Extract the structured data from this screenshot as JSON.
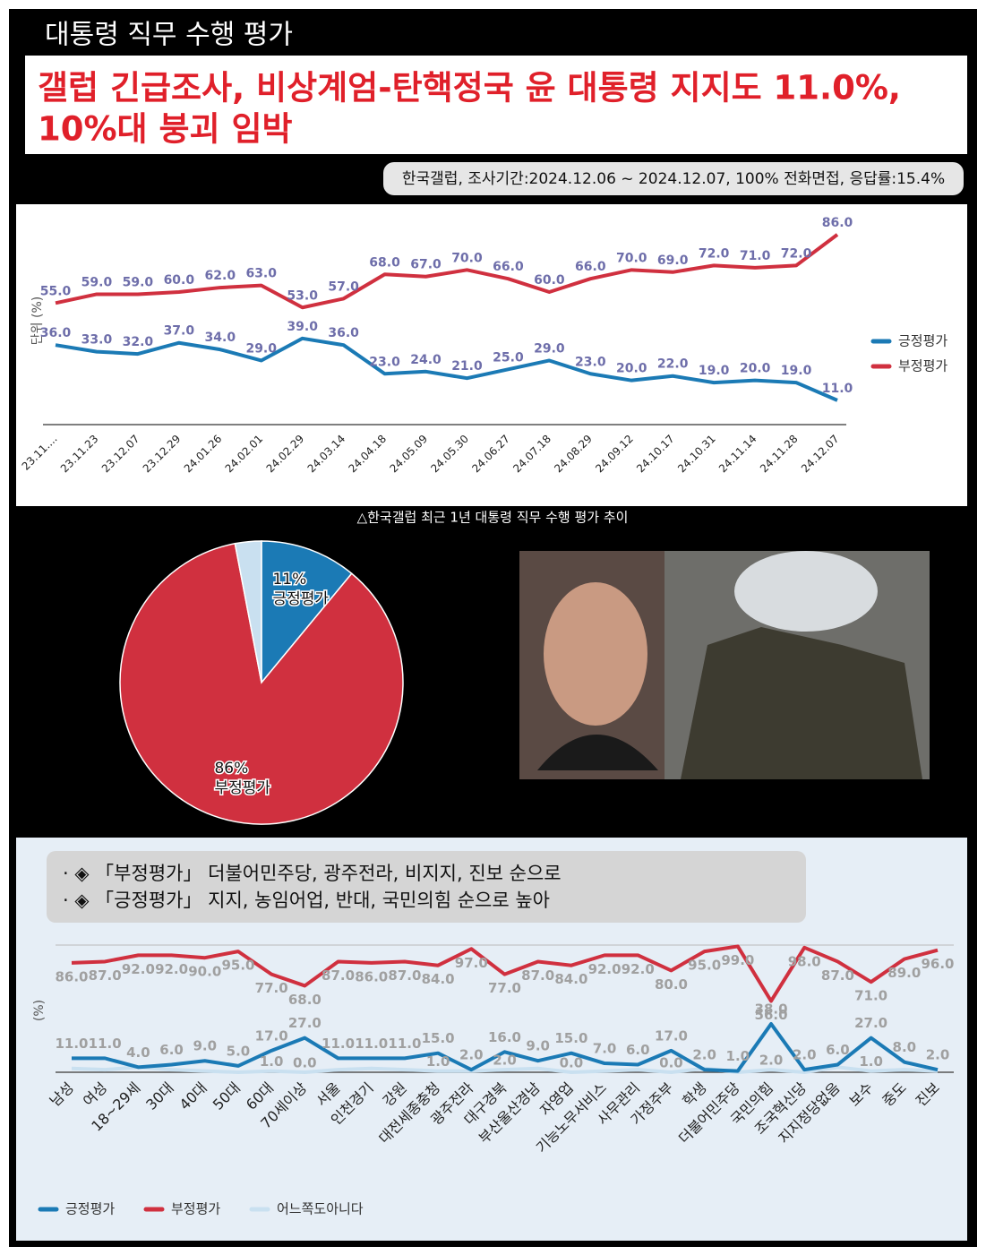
{
  "header": "대통령 직무 수행 평가",
  "title": [
    "갤럽 긴급조사, 비상계엄-탄핵정국 윤 대통령 지지도 11.0%,",
    "10%대 붕괴 임박"
  ],
  "source": "한국갤럽, 조사기간:2024.12.06 ~ 2024.12.07, 100% 전화면접, 응답률:15.4%",
  "caption": "△한국갤럽 최근 1년 대통령 직무 수행 평가 추이",
  "bullets": [
    "· ◈ 「부정평가」 더불어민주당, 광주전라, 비지지, 진보 순으로",
    "· ◈ 「긍정평가」 지지, 농임어업, 반대, 국민의힘 순으로 높아"
  ],
  "chart_data": [
    {
      "type": "line",
      "y_label": "단위 (%)",
      "categories": [
        "23.11....",
        "23.11.23",
        "23.12.07",
        "23.12.29",
        "24.01.26",
        "24.02.01",
        "24.02.29",
        "24.03.14",
        "24.04.18",
        "24.05.09",
        "24.05.30",
        "24.06.27",
        "24.07.18",
        "24.08.29",
        "24.09.12",
        "24.10.17",
        "24.10.31",
        "24.11.14",
        "24.11.28",
        "24.12.07"
      ],
      "series": [
        {
          "name": "긍정평가",
          "color": "#1b7ab5",
          "values": [
            36,
            33,
            32,
            37,
            34,
            29,
            39,
            36,
            23,
            24,
            21,
            25,
            29,
            23,
            20,
            22,
            19,
            20,
            19,
            11
          ],
          "value_labels": [
            "36.0",
            "33.0",
            "32.0",
            "37.0",
            "34.0",
            "29.0",
            "39.0",
            "36.0",
            "23.0",
            "24.0",
            "21.0",
            "25.0",
            "29.0",
            "23.0",
            "20.0",
            "22.0",
            "19.0",
            "20.0",
            "19.0",
            "11.0"
          ]
        },
        {
          "name": "부정평가",
          "color": "#d0303f",
          "values": [
            55,
            59,
            59,
            60,
            62,
            63,
            53,
            57,
            68,
            67,
            70,
            66,
            60,
            66,
            70,
            69,
            72,
            71,
            72,
            86
          ],
          "value_labels": [
            "55.0",
            "59.0",
            "59.0",
            "60.0",
            "62.0",
            "63.0",
            "53.0",
            "57.0",
            "68.0",
            "67.0",
            "70.0",
            "66.0",
            "60.0",
            "66.0",
            "70.0",
            "69.0",
            "72.0",
            "71.0",
            "72.0",
            "86.0"
          ]
        }
      ],
      "ylim": [
        0,
        90
      ],
      "legend": "right"
    },
    {
      "type": "pie",
      "categories": [
        "긍정평가",
        "부정평가",
        null
      ],
      "values": [
        11,
        86,
        3
      ],
      "value_labels": [
        "11%",
        "86%",
        null
      ],
      "colors": [
        "#1b7ab5",
        "#d0303f",
        "#c9e0f0"
      ]
    },
    {
      "type": "line",
      "y_label": "(%)",
      "categories": [
        "남성",
        "여성",
        "18~29세",
        "30대",
        "40대",
        "50대",
        "60대",
        "70세이상",
        "서울",
        "인천경기",
        "강원",
        "대전세종충청",
        "광주전라",
        "대구경북",
        "부산울산경남",
        "자영업",
        "기능노무서비스",
        "사무관리",
        "가정주부",
        "학생",
        "더불어민주당",
        "국민의힘",
        "조국혁신당",
        "지지정당없음",
        "보수",
        "중도",
        "진보"
      ],
      "series": [
        {
          "name": "긍정평가",
          "color": "#1b7ab5",
          "values": [
            11,
            11,
            4,
            6,
            9,
            5,
            17,
            27,
            11,
            11,
            11,
            15,
            2,
            16,
            9,
            15,
            7,
            6,
            17,
            2,
            1,
            38,
            2,
            6,
            27,
            8,
            2
          ],
          "value_labels": [
            "11.0",
            "11.0",
            "4.0",
            "6.0",
            "9.0",
            "5.0",
            "17.0",
            "27.0",
            "11.0",
            "11.0",
            "11.0",
            "15.0",
            "2.0",
            "16.0",
            "9.0",
            "15.0",
            "7.0",
            "6.0",
            "17.0",
            "2.0",
            "1.0",
            "38.0",
            "2.0",
            "6.0",
            "27.0",
            "8.0",
            "2.0"
          ]
        },
        {
          "name": "부정평가",
          "color": "#d0303f",
          "values": [
            86,
            87,
            92,
            92,
            90,
            95,
            77,
            68,
            87,
            86,
            87,
            84,
            97,
            77,
            87,
            84,
            92,
            92,
            80,
            95,
            99,
            56,
            98,
            87,
            71,
            89,
            96
          ],
          "value_labels": [
            "86.0",
            "87.0",
            "92.0",
            "92.0",
            "90.0",
            "95.0",
            "77.0",
            "68.0",
            "87.0",
            "86.0",
            "87.0",
            "84.0",
            "97.0",
            "77.0",
            "87.0",
            "84.0",
            "92.0",
            "92.0",
            "80.0",
            "95.0",
            "99.0",
            "56.0",
            "98.0",
            "87.0",
            "71.0",
            "89.0",
            "96.0"
          ]
        },
        {
          "name": "어느쪽도아니다",
          "color": "#c9e0f0",
          "values": [
            3,
            2,
            4,
            2,
            1,
            0,
            1,
            0,
            2,
            3,
            2,
            1,
            1,
            2,
            3,
            0,
            1,
            2,
            0,
            3,
            0,
            2,
            0,
            4,
            1,
            2,
            1
          ],
          "value_labels": [
            null,
            null,
            null,
            null,
            null,
            null,
            "1.0",
            "0.0",
            null,
            null,
            null,
            "1.0",
            null,
            "2.0",
            null,
            "0.0",
            null,
            null,
            "0.0",
            null,
            null,
            "2.0",
            null,
            null,
            "1.0",
            null,
            null
          ]
        }
      ],
      "ylim": [
        0,
        100
      ],
      "legend": "bottom"
    }
  ]
}
